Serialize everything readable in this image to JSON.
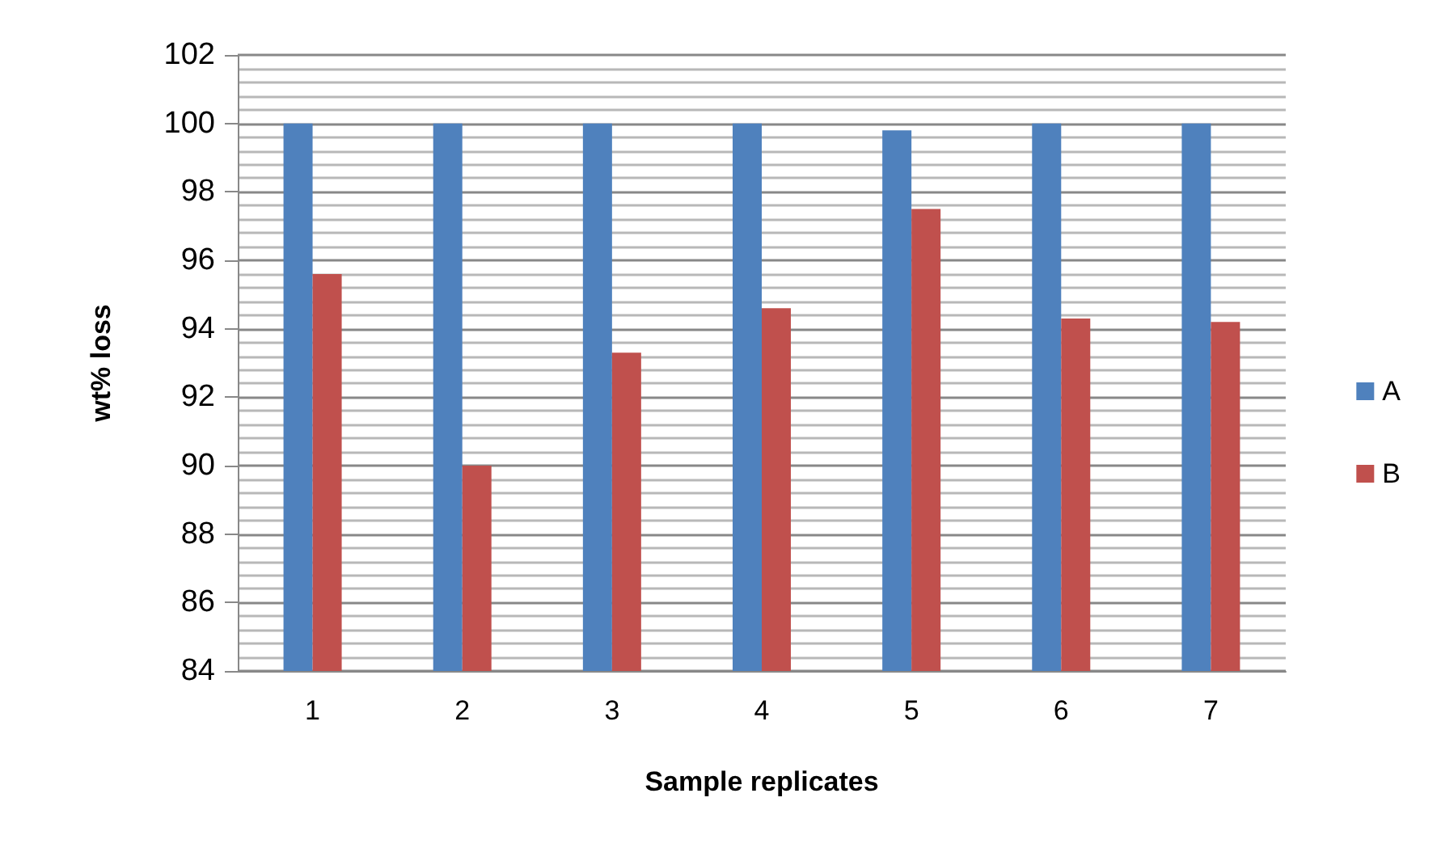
{
  "chart_data": {
    "type": "bar",
    "xlabel": "Sample replicates",
    "ylabel": "wt% loss",
    "categories": [
      "1",
      "2",
      "3",
      "4",
      "5",
      "6",
      "7"
    ],
    "series": [
      {
        "name": "A",
        "color": "#4f81bd",
        "values": [
          100,
          100,
          100,
          100,
          99.8,
          100,
          100
        ]
      },
      {
        "name": "B",
        "color": "#c0504d",
        "values": [
          95.6,
          90.0,
          93.3,
          94.6,
          97.5,
          94.3,
          94.2
        ]
      }
    ],
    "ylim": [
      84,
      102
    ],
    "yticks": [
      84,
      86,
      88,
      90,
      92,
      94,
      96,
      98,
      100,
      102
    ],
    "grid": "y",
    "legend": "right"
  }
}
